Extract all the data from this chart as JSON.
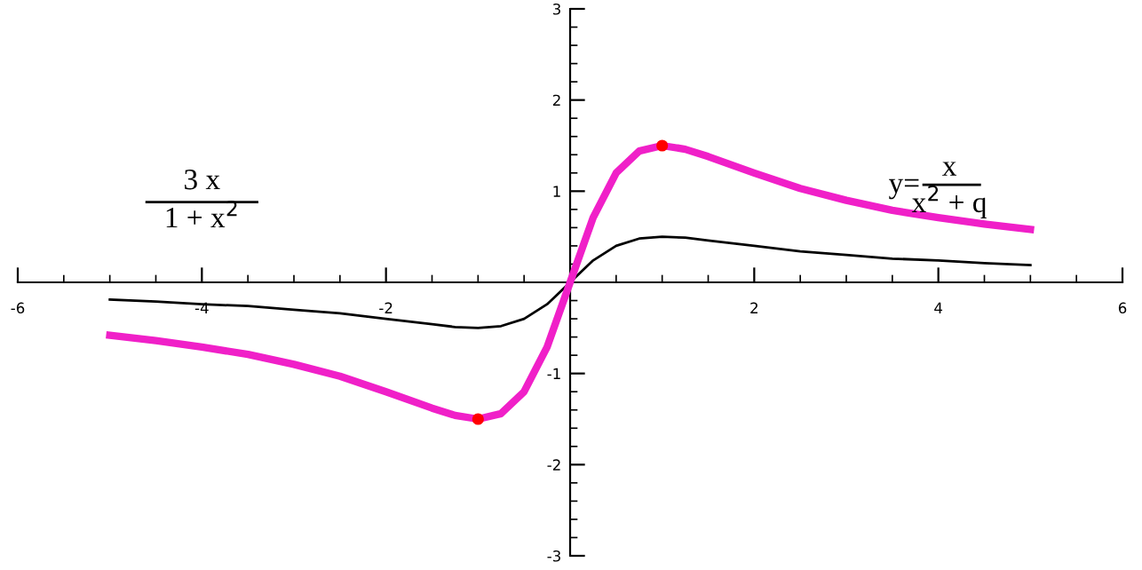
{
  "chart_data": {
    "type": "line",
    "xlim": [
      -6,
      6
    ],
    "ylim": [
      -3,
      3
    ],
    "xticks": [
      {
        "value": -6,
        "label": "-6"
      },
      {
        "value": -5.5,
        "label": null
      },
      {
        "value": -5,
        "label": null
      },
      {
        "value": -4.5,
        "label": null
      },
      {
        "value": -4,
        "label": "-4"
      },
      {
        "value": -3.5,
        "label": null
      },
      {
        "value": -3,
        "label": null
      },
      {
        "value": -2.5,
        "label": null
      },
      {
        "value": -2,
        "label": "-2"
      },
      {
        "value": -1.5,
        "label": null
      },
      {
        "value": -1,
        "label": null
      },
      {
        "value": -0.5,
        "label": null
      },
      {
        "value": 0.5,
        "label": null
      },
      {
        "value": 1,
        "label": null
      },
      {
        "value": 1.5,
        "label": null
      },
      {
        "value": 2,
        "label": "2"
      },
      {
        "value": 2.5,
        "label": null
      },
      {
        "value": 3,
        "label": null
      },
      {
        "value": 3.5,
        "label": null
      },
      {
        "value": 4,
        "label": "4"
      },
      {
        "value": 4.5,
        "label": null
      },
      {
        "value": 5,
        "label": null
      },
      {
        "value": 5.5,
        "label": null
      },
      {
        "value": 6,
        "label": "6"
      }
    ],
    "yticks": [
      {
        "value": -3,
        "label": "-3"
      },
      {
        "value": -2.8,
        "label": null
      },
      {
        "value": -2.6,
        "label": null
      },
      {
        "value": -2.4,
        "label": null
      },
      {
        "value": -2.2,
        "label": null
      },
      {
        "value": -2,
        "label": "-2"
      },
      {
        "value": -1.8,
        "label": null
      },
      {
        "value": -1.6,
        "label": null
      },
      {
        "value": -1.4,
        "label": null
      },
      {
        "value": -1.2,
        "label": null
      },
      {
        "value": -1,
        "label": "-1"
      },
      {
        "value": -0.8,
        "label": null
      },
      {
        "value": -0.6,
        "label": null
      },
      {
        "value": -0.4,
        "label": null
      },
      {
        "value": -0.2,
        "label": null
      },
      {
        "value": 0.2,
        "label": null
      },
      {
        "value": 0.4,
        "label": null
      },
      {
        "value": 0.6,
        "label": null
      },
      {
        "value": 0.8,
        "label": null
      },
      {
        "value": 1,
        "label": "1"
      },
      {
        "value": 1.2,
        "label": null
      },
      {
        "value": 1.4,
        "label": null
      },
      {
        "value": 1.6,
        "label": null
      },
      {
        "value": 1.8,
        "label": null
      },
      {
        "value": 2,
        "label": "2"
      },
      {
        "value": 2.2,
        "label": null
      },
      {
        "value": 2.4,
        "label": null
      },
      {
        "value": 2.6,
        "label": null
      },
      {
        "value": 2.8,
        "label": null
      },
      {
        "value": 3,
        "label": "3"
      }
    ],
    "series": [
      {
        "color": "#000000",
        "x": [
          -5,
          -4.5,
          -4,
          -3.5,
          -3,
          -2.5,
          -2,
          -1.5,
          -1.25,
          -1,
          -0.75,
          -0.5,
          -0.25,
          0,
          0.25,
          0.5,
          0.75,
          1,
          1.25,
          1.5,
          2,
          2.5,
          3,
          3.5,
          4,
          4.5,
          5
        ],
        "values": [
          -0.19,
          -0.21,
          -0.24,
          -0.26,
          -0.3,
          -0.34,
          -0.4,
          -0.46,
          -0.49,
          -0.5,
          -0.48,
          -0.4,
          -0.24,
          0,
          0.24,
          0.4,
          0.48,
          0.5,
          0.49,
          0.46,
          0.4,
          0.34,
          0.3,
          0.26,
          0.24,
          0.21,
          0.19
        ]
      },
      {
        "color": "#f020c8",
        "x": [
          -5,
          -4.5,
          -4,
          -3.5,
          -3,
          -2.5,
          -2,
          -1.5,
          -1.25,
          -1,
          -0.75,
          -0.5,
          -0.25,
          0,
          0.25,
          0.5,
          0.75,
          1,
          1.25,
          1.5,
          2,
          2.5,
          3,
          3.5,
          4,
          4.5,
          5
        ],
        "values": [
          -0.58,
          -0.64,
          -0.71,
          -0.79,
          -0.9,
          -1.03,
          -1.2,
          -1.38,
          -1.46,
          -1.5,
          -1.44,
          -1.2,
          -0.71,
          0,
          0.71,
          1.2,
          1.44,
          1.5,
          1.46,
          1.38,
          1.2,
          1.03,
          0.9,
          0.79,
          0.71,
          0.64,
          0.58
        ]
      },
      {
        "type": "scatter",
        "color": "#ff0000",
        "marker": "circle",
        "x": [
          -1,
          1
        ],
        "values": [
          -1.5,
          1.5
        ]
      }
    ],
    "annotations": [
      "3 x",
      "1 + x$^{2}$",
      "y=",
      "x",
      "x$^{2}$ + q"
    ]
  }
}
